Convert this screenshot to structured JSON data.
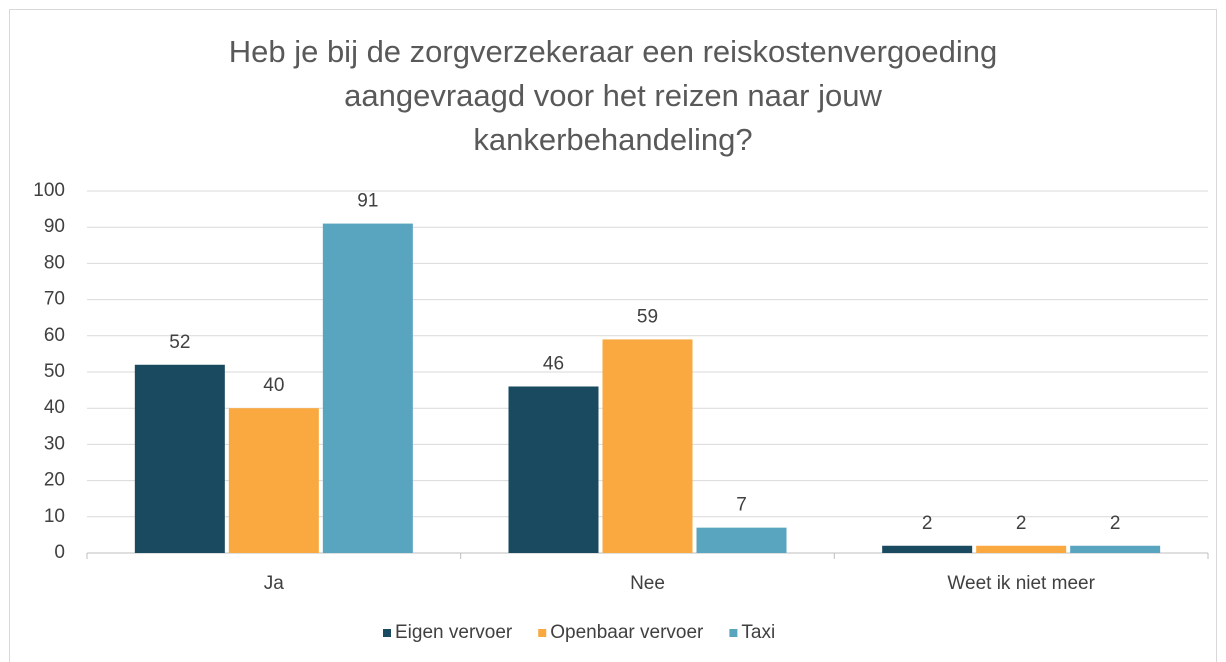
{
  "chart_data": {
    "type": "bar",
    "title": [
      "Heb je bij de zorgverzekeraar een reiskostenvergoeding",
      "aangevraagd voor het reizen naar jouw",
      "kankerbehandeling?"
    ],
    "categories": [
      "Ja",
      "Nee",
      "Weet ik niet meer"
    ],
    "series": [
      {
        "name": "Eigen vervoer",
        "color": "#1a4a5f",
        "values": [
          52,
          46,
          2
        ]
      },
      {
        "name": "Openbaar vervoer",
        "color": "#f9a93f",
        "values": [
          40,
          59,
          2
        ]
      },
      {
        "name": "Taxi",
        "color": "#59a5c0",
        "values": [
          91,
          7,
          2
        ]
      }
    ],
    "ylim": [
      0,
      100
    ],
    "yticks": [
      0,
      10,
      20,
      30,
      40,
      50,
      60,
      70,
      80,
      90,
      100
    ],
    "grid": true,
    "legend": "bottom"
  }
}
